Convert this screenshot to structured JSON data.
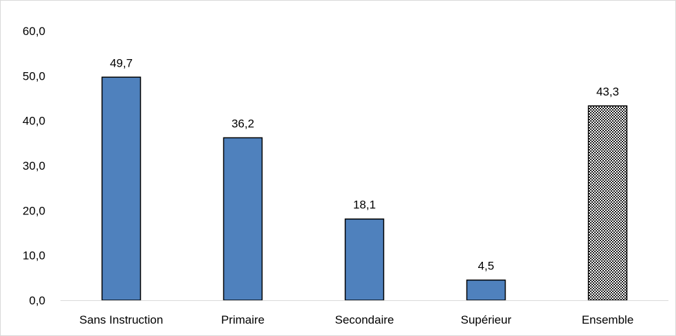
{
  "chart_data": {
    "type": "bar",
    "categories": [
      "Sans Instruction",
      "Primaire",
      "Secondaire",
      "Supérieur",
      "Ensemble"
    ],
    "values": [
      49.7,
      36.2,
      18.1,
      4.5,
      43.3
    ],
    "value_labels": [
      "49,7",
      "36,2",
      "18,1",
      "4,5",
      "43,3"
    ],
    "title": "",
    "xlabel": "",
    "ylabel": "",
    "ylim": [
      0,
      60
    ],
    "y_ticks": [
      "0,0",
      "10,0",
      "20,0",
      "30,0",
      "40,0",
      "50,0",
      "60,0"
    ],
    "grid": false,
    "legend": "none",
    "bar_color": "#4f81bd",
    "bar_border_color": "#000000",
    "highlight_pattern": "checkered",
    "highlight_category": "Ensemble"
  }
}
